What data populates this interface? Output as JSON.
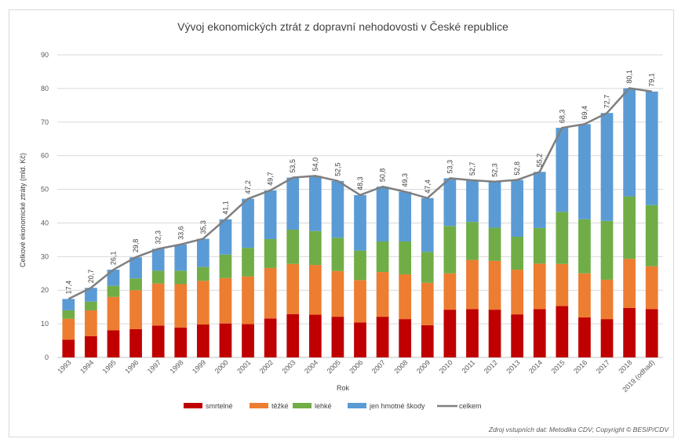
{
  "chart_data": {
    "type": "bar",
    "stacked": true,
    "title": "Vývoj ekonomických ztrát z dopravní nehodovosti v České republice",
    "xlabel": "Rok",
    "ylabel": "Celkové ekonomické ztráty (mld. Kč)",
    "ylim": [
      0,
      90
    ],
    "yticks": [
      "0",
      "10",
      "20",
      "30",
      "40",
      "50",
      "60",
      "70",
      "80",
      "90"
    ],
    "grid": true,
    "legend_position": "bottom",
    "categories": [
      "1993",
      "1994",
      "1995",
      "1996",
      "1997",
      "1998",
      "1999",
      "2000",
      "2001",
      "2002",
      "2003",
      "2004",
      "2005",
      "2006",
      "2007",
      "2008",
      "2009",
      "2010",
      "2011",
      "2012",
      "2013",
      "2014",
      "2015",
      "2016",
      "2017",
      "2018",
      "2019 (odhad)"
    ],
    "series": [
      {
        "name": "smrtelné",
        "color": "#c00000",
        "values": [
          5.3,
          6.3,
          8.1,
          8.4,
          9.5,
          8.9,
          9.8,
          10.1,
          9.9,
          11.6,
          12.9,
          12.7,
          12.1,
          10.4,
          12.1,
          11.4,
          9.6,
          14.2,
          14.4,
          14.2,
          12.8,
          14.4,
          15.3,
          11.9,
          11.4,
          14.7,
          14.4
        ]
      },
      {
        "name": "těžké",
        "color": "#ed7d31",
        "values": [
          6.2,
          7.7,
          9.9,
          11.6,
          12.5,
          12.9,
          13.0,
          13.5,
          14.2,
          15.0,
          14.9,
          14.8,
          13.6,
          12.6,
          13.3,
          13.3,
          12.6,
          10.8,
          14.6,
          14.5,
          13.3,
          13.5,
          12.5,
          13.1,
          11.7,
          14.6,
          12.7
        ]
      },
      {
        "name": "lehké",
        "color": "#70ad47",
        "values": [
          2.5,
          2.6,
          3.3,
          3.5,
          3.8,
          4.0,
          4.1,
          7.0,
          8.5,
          8.6,
          10.2,
          10.1,
          9.9,
          8.8,
          9.1,
          9.8,
          9.2,
          14.1,
          11.3,
          9.9,
          9.8,
          10.6,
          15.5,
          16.1,
          17.5,
          18.6,
          18.2
        ]
      },
      {
        "name": "jen hmotné škody",
        "color": "#5b9bd5",
        "values": [
          3.4,
          4.1,
          4.8,
          6.3,
          6.5,
          7.8,
          8.4,
          10.5,
          14.6,
          14.5,
          15.5,
          16.4,
          16.9,
          16.5,
          16.3,
          14.8,
          16.0,
          14.2,
          12.4,
          13.7,
          16.9,
          16.7,
          25.0,
          28.3,
          32.1,
          32.2,
          33.8
        ]
      }
    ],
    "line": {
      "name": "celkem",
      "color": "#7f7f7f",
      "values": [
        17.4,
        20.7,
        26.1,
        29.8,
        32.3,
        33.6,
        35.3,
        41.1,
        47.2,
        49.7,
        53.5,
        54.0,
        52.5,
        48.3,
        50.8,
        49.3,
        47.4,
        53.3,
        52.7,
        52.3,
        52.8,
        55.2,
        68.3,
        69.4,
        72.7,
        80.1,
        79.1
      ]
    },
    "data_labels": [
      "17,4",
      "20,7",
      "26,1",
      "29,8",
      "32,3",
      "33,6",
      "35,3",
      "41,1",
      "47,2",
      "49,7",
      "53,5",
      "54,0",
      "52,5",
      "48,3",
      "50,8",
      "49,3",
      "47,4",
      "53,3",
      "52,7",
      "52,3",
      "52,8",
      "55,2",
      "68,3",
      "69,4",
      "72,7",
      "80,1",
      "79,1"
    ]
  },
  "source_note": "Zdroj vstupních dat: Metodika CDV; Copyright © BESIP/CDV"
}
